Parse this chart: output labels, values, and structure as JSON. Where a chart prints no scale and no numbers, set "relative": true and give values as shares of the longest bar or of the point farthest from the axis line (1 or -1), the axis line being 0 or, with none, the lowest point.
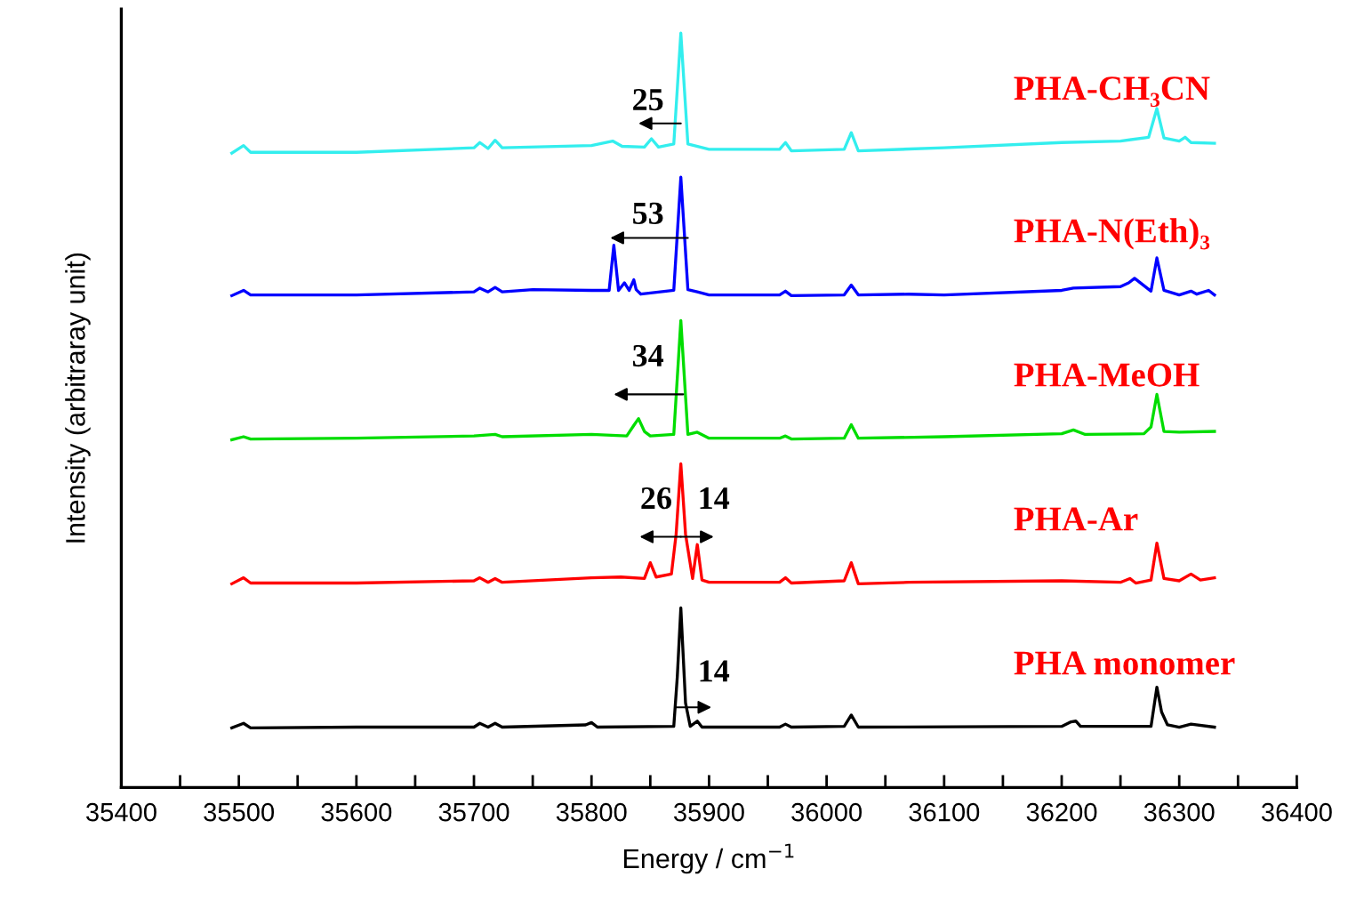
{
  "chart_data": {
    "type": "line",
    "relative": true,
    "xlabel": "Energy / cm$^{−1}$",
    "ylabel": "Intensity (arbitraray unit)",
    "xlim": [
      35400,
      36400
    ],
    "xticks": [
      35400,
      {
        "value": 35450,
        "label": null
      },
      35500,
      {
        "value": 35550,
        "label": null
      },
      35600,
      {
        "value": 35650,
        "label": null
      },
      35700,
      {
        "value": 35750,
        "label": null
      },
      35800,
      {
        "value": 35850,
        "label": null
      },
      35900,
      {
        "value": 35950,
        "label": null
      },
      36000,
      {
        "value": 36050,
        "label": null
      },
      36100,
      {
        "value": 36150,
        "label": null
      },
      36200,
      {
        "value": 36250,
        "label": null
      },
      36300,
      {
        "value": 36350,
        "label": null
      },
      36400
    ],
    "grid": false,
    "legend": false,
    "marker": "none",
    "line_style": "solid",
    "series": [
      {
        "name": "PHA-CH₃CN",
        "color": "#33eeee",
        "x": [
          35494,
          35504,
          35510,
          35600,
          35700,
          35705,
          35712,
          35718,
          35724,
          35800,
          35818,
          35826,
          35845,
          35851,
          35857,
          35870,
          35876,
          35882,
          35900,
          35960,
          35965,
          35970,
          36015,
          36021,
          36027,
          36100,
          36200,
          36250,
          36274,
          36281,
          36287,
          36300,
          36305,
          36310,
          36330
        ],
        "values": [
          0.841,
          0.851,
          0.842,
          0.842,
          0.848,
          0.855,
          0.847,
          0.858,
          0.848,
          0.851,
          0.857,
          0.85,
          0.849,
          0.86,
          0.849,
          0.853,
          1.0,
          0.853,
          0.846,
          0.846,
          0.855,
          0.844,
          0.846,
          0.868,
          0.844,
          0.848,
          0.855,
          0.857,
          0.862,
          0.9,
          0.861,
          0.857,
          0.862,
          0.855,
          0.854
        ]
      },
      {
        "name": "PHA-N(Eth)₃",
        "color": "#0000ff",
        "x": [
          35494,
          35504,
          35510,
          35600,
          35700,
          35705,
          35712,
          35718,
          35724,
          35750,
          35800,
          35815,
          35819,
          35823,
          35828,
          35832,
          35836,
          35838,
          35842,
          35870,
          35876,
          35882,
          35890,
          35900,
          35960,
          35965,
          35970,
          36015,
          36021,
          36027,
          36070,
          36100,
          36200,
          36210,
          36250,
          36257,
          36262,
          36276,
          36281,
          36287,
          36300,
          36310,
          36315,
          36325,
          36330
        ],
        "values": [
          0.652,
          0.659,
          0.653,
          0.653,
          0.657,
          0.662,
          0.657,
          0.663,
          0.657,
          0.66,
          0.659,
          0.659,
          0.719,
          0.659,
          0.669,
          0.659,
          0.673,
          0.66,
          0.654,
          0.659,
          0.809,
          0.66,
          0.657,
          0.653,
          0.653,
          0.658,
          0.652,
          0.653,
          0.666,
          0.653,
          0.654,
          0.653,
          0.659,
          0.662,
          0.664,
          0.669,
          0.675,
          0.658,
          0.702,
          0.659,
          0.653,
          0.658,
          0.654,
          0.659,
          0.653
        ]
      },
      {
        "name": "PHA-MeOH",
        "color": "#00dd00",
        "x": [
          35494,
          35504,
          35510,
          35600,
          35700,
          35718,
          35724,
          35800,
          35830,
          35836,
          35840,
          35845,
          35850,
          35870,
          35876,
          35882,
          35890,
          35900,
          35960,
          35965,
          35970,
          36015,
          36021,
          36027,
          36100,
          36200,
          36210,
          36220,
          36270,
          36276,
          36281,
          36287,
          36300,
          36330
        ],
        "values": [
          0.461,
          0.465,
          0.462,
          0.463,
          0.466,
          0.468,
          0.465,
          0.468,
          0.466,
          0.48,
          0.489,
          0.472,
          0.466,
          0.468,
          0.619,
          0.468,
          0.471,
          0.463,
          0.463,
          0.466,
          0.462,
          0.463,
          0.481,
          0.463,
          0.465,
          0.469,
          0.474,
          0.468,
          0.469,
          0.478,
          0.521,
          0.472,
          0.471,
          0.472
        ]
      },
      {
        "name": "PHA-Ar",
        "color": "#ff0000",
        "x": [
          35494,
          35504,
          35510,
          35600,
          35700,
          35705,
          35712,
          35718,
          35724,
          35800,
          35825,
          35845,
          35850,
          35855,
          35868,
          35872,
          35876,
          35880,
          35886,
          35890,
          35894,
          35900,
          35960,
          35965,
          35970,
          36015,
          36021,
          36027,
          36070,
          36200,
          36250,
          36258,
          36263,
          36276,
          36281,
          36287,
          36300,
          36310,
          36318,
          36330
        ],
        "values": [
          0.27,
          0.278,
          0.271,
          0.271,
          0.274,
          0.278,
          0.272,
          0.277,
          0.272,
          0.278,
          0.279,
          0.277,
          0.298,
          0.279,
          0.283,
          0.336,
          0.429,
          0.336,
          0.277,
          0.322,
          0.275,
          0.272,
          0.272,
          0.278,
          0.271,
          0.274,
          0.298,
          0.27,
          0.272,
          0.274,
          0.272,
          0.277,
          0.271,
          0.275,
          0.324,
          0.277,
          0.274,
          0.283,
          0.275,
          0.278
        ]
      },
      {
        "name": "PHA monomer",
        "color": "#000000",
        "x": [
          35494,
          35504,
          35510,
          35600,
          35700,
          35705,
          35712,
          35718,
          35724,
          35795,
          35800,
          35805,
          35870,
          35873,
          35876,
          35880,
          35884,
          35890,
          35894,
          35960,
          35965,
          35970,
          36015,
          36021,
          36027,
          36200,
          36208,
          36212,
          36216,
          36276,
          36281,
          36285,
          36290,
          36300,
          36310,
          36330
        ],
        "values": [
          0.079,
          0.085,
          0.079,
          0.08,
          0.08,
          0.085,
          0.08,
          0.085,
          0.08,
          0.083,
          0.086,
          0.08,
          0.081,
          0.147,
          0.238,
          0.112,
          0.081,
          0.088,
          0.08,
          0.08,
          0.084,
          0.08,
          0.081,
          0.096,
          0.08,
          0.081,
          0.087,
          0.088,
          0.081,
          0.081,
          0.133,
          0.1,
          0.083,
          0.08,
          0.084,
          0.08
        ]
      }
    ],
    "annotations": [
      "25",
      "53",
      "34",
      "26",
      "14",
      "14"
    ]
  }
}
